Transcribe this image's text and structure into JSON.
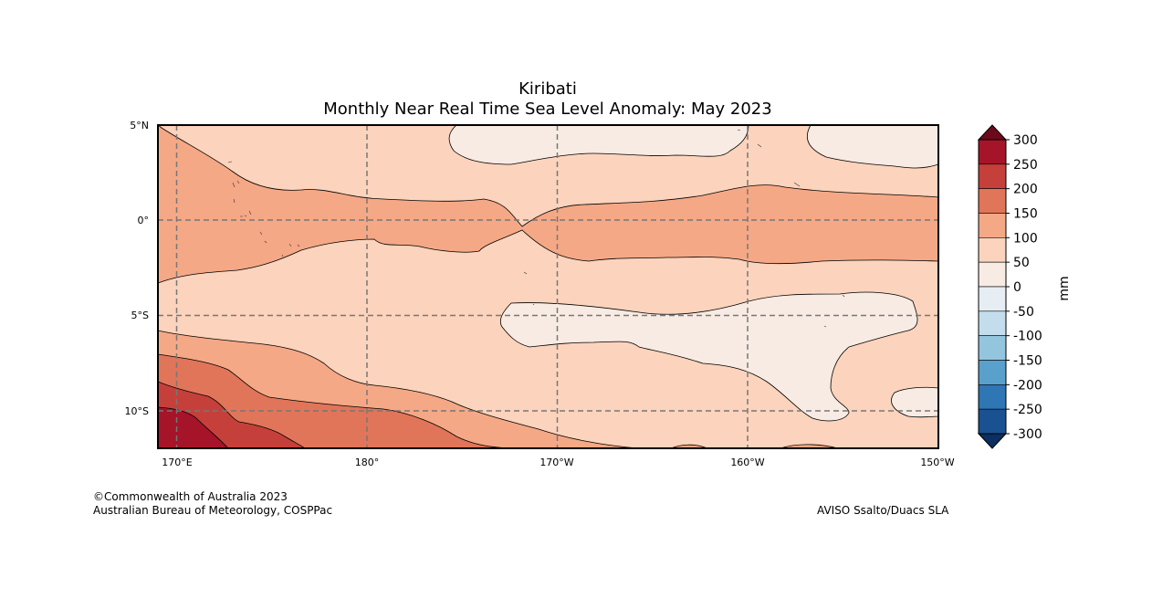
{
  "map": {
    "title_line1": "Kiribati",
    "title_line2": "Monthly Near Real Time Sea Level Anomaly: May 2023",
    "region": "Kiribati / central equatorial Pacific",
    "lat_ticks": [
      "5°N",
      "0°",
      "5°S",
      "10°S"
    ],
    "lon_ticks": [
      "170°E",
      "180°",
      "170°W",
      "160°W",
      "150°W"
    ],
    "credit_left_line1": "©Commonwealth of Australia 2023",
    "credit_left_line2": "Australian Bureau of Meteorology, COSPPac",
    "credit_right": "AVISO Ssalto/Duacs SLA"
  },
  "colorbar": {
    "unit": "mm",
    "ticks": [
      "300",
      "250",
      "200",
      "150",
      "100",
      "50",
      "0",
      "-50",
      "-100",
      "-150",
      "-200",
      "-250",
      "-300"
    ],
    "levels": [
      {
        "range": "250 to 300",
        "color": "#a51429"
      },
      {
        "range": "200 to 250",
        "color": "#c5403a"
      },
      {
        "range": "150 to 200",
        "color": "#e07559"
      },
      {
        "range": "100 to 150",
        "color": "#f5a886"
      },
      {
        "range": "50 to 100",
        "color": "#fcd3bc"
      },
      {
        "range": "0 to 50",
        "color": "#f8ebe4"
      },
      {
        "range": "-50 to 0",
        "color": "#e6eef3"
      },
      {
        "range": "-100 to -50",
        "color": "#c4ddec"
      },
      {
        "range": "-150 to -100",
        "color": "#94c5de"
      },
      {
        "range": "-200 to -150",
        "color": "#5aa0cd"
      },
      {
        "range": "-250 to -200",
        "color": "#2f76b4"
      },
      {
        "range": "-300 to -250",
        "color": "#1a5291"
      }
    ],
    "over_color": "#6c0a1c",
    "under_color": "#0b2f60"
  }
}
